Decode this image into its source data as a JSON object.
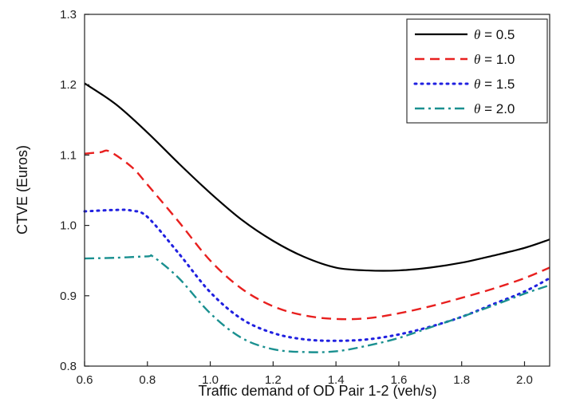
{
  "chart_data": {
    "type": "line",
    "title": "",
    "xlabel": "Traffic demand of OD Pair 1-2 (veh/s)",
    "ylabel": "CTVE (Euros)",
    "xlim": [
      0.6,
      2.08
    ],
    "ylim": [
      0.8,
      1.3
    ],
    "x_ticks": [
      "0.6",
      "0.8",
      "1.0",
      "1.2",
      "1.4",
      "1.6",
      "1.8",
      "2.0"
    ],
    "y_ticks": [
      "0.8",
      "0.9",
      "1.0",
      "1.1",
      "1.2",
      "1.3"
    ],
    "grid": false,
    "legend": {
      "position": "top-right"
    },
    "series": [
      {
        "name": "θ = 0.5",
        "color": "#000000",
        "style": "solid",
        "x": [
          0.6,
          0.7,
          0.8,
          0.9,
          1.0,
          1.1,
          1.2,
          1.3,
          1.4,
          1.5,
          1.6,
          1.7,
          1.8,
          1.9,
          2.0,
          2.08
        ],
        "y": [
          1.202,
          1.172,
          1.132,
          1.088,
          1.046,
          1.008,
          0.978,
          0.955,
          0.94,
          0.936,
          0.936,
          0.94,
          0.947,
          0.957,
          0.968,
          0.98
        ]
      },
      {
        "name": "θ = 1.0",
        "color": "#e8201f",
        "style": "dashed",
        "x": [
          0.6,
          0.65,
          0.68,
          0.75,
          0.8,
          0.9,
          1.0,
          1.1,
          1.2,
          1.3,
          1.4,
          1.5,
          1.6,
          1.7,
          1.8,
          1.9,
          2.0,
          2.08
        ],
        "y": [
          1.102,
          1.104,
          1.105,
          1.083,
          1.058,
          1.005,
          0.95,
          0.91,
          0.885,
          0.872,
          0.867,
          0.868,
          0.875,
          0.885,
          0.897,
          0.91,
          0.925,
          0.94
        ]
      },
      {
        "name": "θ = 1.5",
        "color": "#2020e0",
        "style": "dotted",
        "x": [
          0.6,
          0.7,
          0.75,
          0.8,
          0.9,
          1.0,
          1.1,
          1.2,
          1.3,
          1.4,
          1.5,
          1.6,
          1.7,
          1.8,
          1.9,
          2.0,
          2.08
        ],
        "y": [
          1.02,
          1.022,
          1.021,
          1.012,
          0.96,
          0.905,
          0.867,
          0.847,
          0.838,
          0.836,
          0.838,
          0.845,
          0.856,
          0.87,
          0.888,
          0.906,
          0.925
        ]
      },
      {
        "name": "θ = 2.0",
        "color": "#1a9090",
        "style": "dash-dot",
        "x": [
          0.6,
          0.7,
          0.8,
          0.82,
          0.9,
          1.0,
          1.1,
          1.2,
          1.3,
          1.4,
          1.5,
          1.6,
          1.7,
          1.8,
          1.9,
          2.0,
          2.08
        ],
        "y": [
          0.953,
          0.954,
          0.956,
          0.955,
          0.925,
          0.875,
          0.84,
          0.824,
          0.82,
          0.821,
          0.829,
          0.84,
          0.855,
          0.87,
          0.886,
          0.903,
          0.915
        ]
      }
    ]
  }
}
